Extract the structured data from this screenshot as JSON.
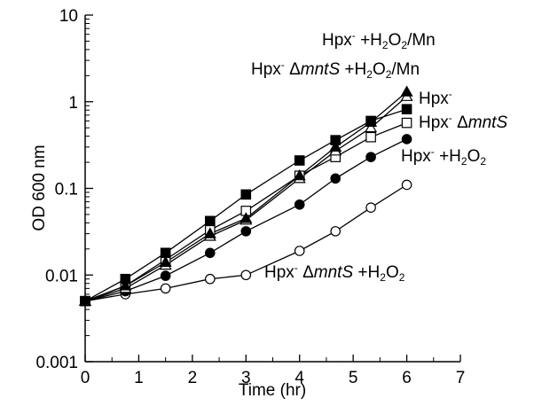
{
  "chart_data": {
    "type": "line",
    "title": "",
    "xlabel": "Time (hr)",
    "ylabel": "OD 600 nm",
    "xlim": [
      0,
      7
    ],
    "ylim": [
      0.001,
      10
    ],
    "yscale": "log",
    "xticks": [
      "0",
      "1",
      "2",
      "3",
      "4",
      "5",
      "6",
      "7"
    ],
    "yticks": [
      "0.001",
      "0.01",
      "0.1",
      "1",
      "10"
    ],
    "grid": false,
    "legend": "inline labels beside curves",
    "series": [
      {
        "marker": "filled-square",
        "label_parts": [
          {
            "t": "Hpx"
          },
          {
            "t": "-",
            "sup": true
          }
        ],
        "x": [
          0,
          0.75,
          1.5,
          2.33,
          3,
          4,
          4.67,
          5.33,
          6
        ],
        "y": [
          0.005,
          0.009,
          0.018,
          0.042,
          0.085,
          0.21,
          0.36,
          0.6,
          0.82
        ]
      },
      {
        "marker": "filled-triangle",
        "label_parts": [
          {
            "t": "Hpx"
          },
          {
            "t": "-",
            "sup": true
          },
          {
            "t": " +H"
          },
          {
            "t": "2",
            "sub": true
          },
          {
            "t": "O"
          },
          {
            "t": "2",
            "sub": true
          },
          {
            "t": "/Mn"
          }
        ],
        "x": [
          0,
          0.75,
          1.5,
          2.33,
          3,
          4,
          4.67,
          5.33,
          6
        ],
        "y": [
          0.005,
          0.0075,
          0.014,
          0.03,
          0.045,
          0.14,
          0.3,
          0.58,
          1.3
        ]
      },
      {
        "marker": "open-triangle",
        "label_parts": [
          {
            "t": "Hpx"
          },
          {
            "t": "-",
            "sup": true
          },
          {
            "t": " Δ"
          },
          {
            "t": "mntS",
            "italic": true
          },
          {
            "t": " +H"
          },
          {
            "t": "2",
            "sub": true
          },
          {
            "t": "O"
          },
          {
            "t": "2",
            "sub": true
          },
          {
            "t": "/Mn"
          }
        ],
        "x": [
          0,
          0.75,
          1.5,
          2.33,
          3,
          4,
          4.67,
          5.33,
          6
        ],
        "y": [
          0.005,
          0.007,
          0.013,
          0.028,
          0.043,
          0.13,
          0.27,
          0.5,
          1.15
        ]
      },
      {
        "marker": "open-square",
        "label_parts": [
          {
            "t": "Hpx"
          },
          {
            "t": "-",
            "sup": true
          },
          {
            "t": " Δ"
          },
          {
            "t": "mntS",
            "italic": true
          }
        ],
        "x": [
          0,
          0.75,
          1.5,
          2.33,
          3,
          4,
          4.67,
          5.33,
          6
        ],
        "y": [
          0.005,
          0.0075,
          0.015,
          0.033,
          0.055,
          0.14,
          0.23,
          0.39,
          0.57
        ]
      },
      {
        "marker": "filled-circle",
        "label_parts": [
          {
            "t": "Hpx"
          },
          {
            "t": "-",
            "sup": true
          },
          {
            "t": " +H"
          },
          {
            "t": "2",
            "sub": true
          },
          {
            "t": "O"
          },
          {
            "t": "2",
            "sub": true
          }
        ],
        "x": [
          0,
          0.75,
          1.5,
          2.33,
          3,
          4,
          4.67,
          5.33,
          6
        ],
        "y": [
          0.005,
          0.0065,
          0.0098,
          0.018,
          0.032,
          0.065,
          0.13,
          0.23,
          0.37
        ]
      },
      {
        "marker": "open-circle",
        "label_parts": [
          {
            "t": "Hpx"
          },
          {
            "t": "-",
            "sup": true
          },
          {
            "t": " Δ"
          },
          {
            "t": "mntS",
            "italic": true
          },
          {
            "t": " +H"
          },
          {
            "t": "2",
            "sub": true
          },
          {
            "t": "O"
          },
          {
            "t": "2",
            "sub": true
          }
        ],
        "x": [
          0,
          0.75,
          1.5,
          2.33,
          3,
          4,
          4.67,
          5.33,
          6
        ],
        "y": [
          0.005,
          0.006,
          0.007,
          0.009,
          0.01,
          0.019,
          0.032,
          0.06,
          0.11
        ]
      }
    ]
  }
}
